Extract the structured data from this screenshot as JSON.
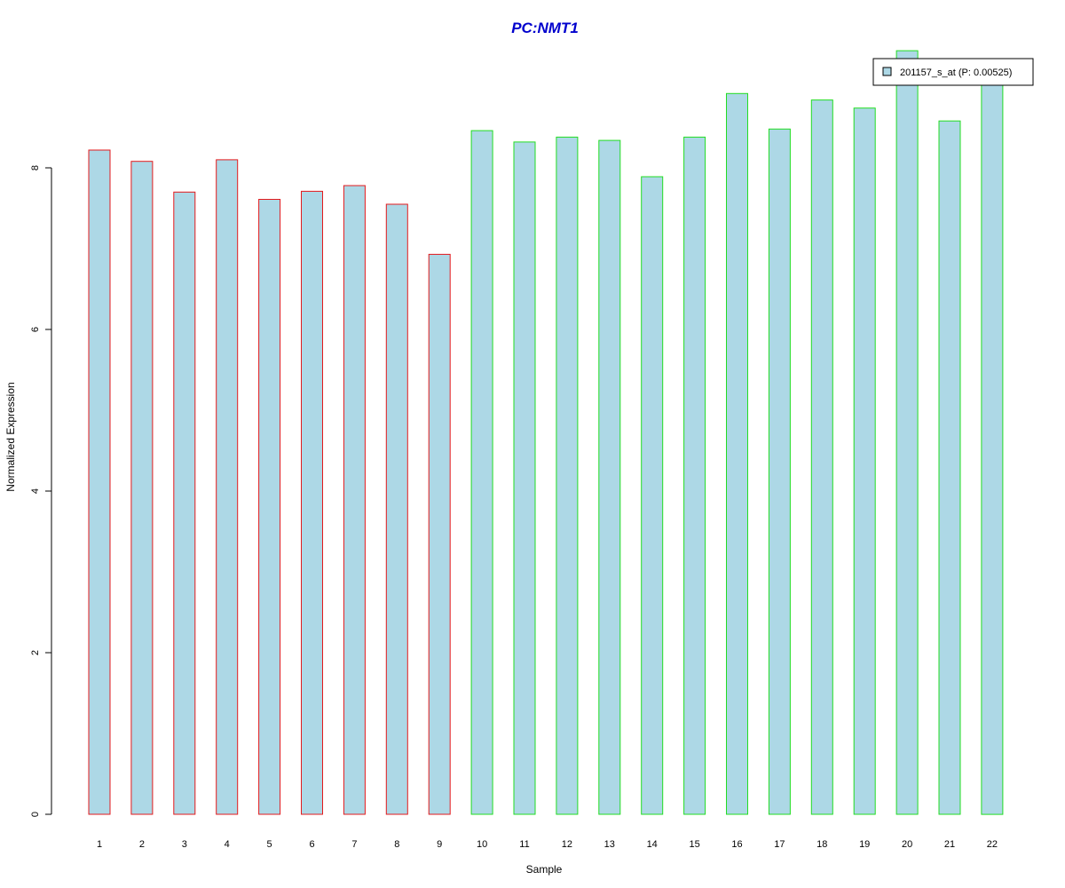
{
  "chart_data": {
    "type": "bar",
    "title": "PC:NMT1",
    "xlabel": "Sample",
    "ylabel": "Normalized Expression",
    "categories": [
      "1",
      "2",
      "3",
      "4",
      "5",
      "6",
      "7",
      "8",
      "9",
      "10",
      "11",
      "12",
      "13",
      "14",
      "15",
      "16",
      "17",
      "18",
      "19",
      "20",
      "21",
      "22"
    ],
    "series": [
      {
        "name": "201157_s_at (P: 0.00525)",
        "values": [
          8.22,
          8.08,
          7.7,
          8.1,
          7.61,
          7.71,
          7.78,
          7.55,
          6.93,
          8.46,
          8.32,
          8.38,
          8.34,
          7.89,
          8.38,
          8.92,
          8.48,
          8.84,
          8.74,
          9.45,
          8.58,
          9.25
        ]
      }
    ],
    "group_border_colors": [
      "#e31a1c",
      "#e31a1c",
      "#e31a1c",
      "#e31a1c",
      "#e31a1c",
      "#e31a1c",
      "#e31a1c",
      "#e31a1c",
      "#e31a1c",
      "#22dd22",
      "#22dd22",
      "#22dd22",
      "#22dd22",
      "#22dd22",
      "#22dd22",
      "#22dd22",
      "#22dd22",
      "#22dd22",
      "#22dd22",
      "#22dd22",
      "#22dd22",
      "#22dd22"
    ],
    "yticks": [
      0,
      2,
      4,
      6,
      8
    ],
    "ylim": [
      0,
      9.45
    ],
    "grid": false,
    "legend_position": "top-right",
    "colors": {
      "bar_fill": "#add8e6",
      "title": "#0000cd",
      "axis": "#000000"
    }
  }
}
